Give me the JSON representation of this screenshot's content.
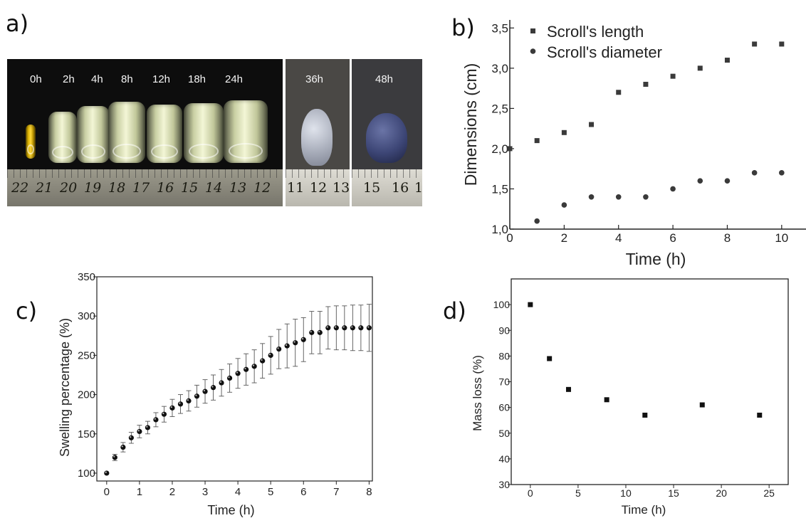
{
  "figure": {
    "panel_labels": [
      "a)",
      "b)",
      "c)",
      "d)"
    ],
    "photo_labels": [
      "0h",
      "2h",
      "4h",
      "8h",
      "12h",
      "18h",
      "24h",
      "36h",
      "48h"
    ],
    "ruler_main": [
      "22",
      "21",
      "20",
      "19",
      "18",
      "17",
      "16",
      "15",
      "14",
      "13",
      "12"
    ],
    "ruler_36h": [
      "11",
      "12",
      "13"
    ],
    "ruler_48h": [
      "15",
      "16",
      "1"
    ]
  },
  "chart_data": [
    {
      "type": "scatter",
      "xlabel": "Time (h)",
      "ylabel": "Dimensions (cm)",
      "xlim": [
        0,
        11
      ],
      "ylim": [
        1.0,
        3.6
      ],
      "xticks": [
        0,
        2,
        4,
        6,
        8,
        10
      ],
      "yticks": [
        "1,0",
        "1,5",
        "2,0",
        "2,5",
        "3,0",
        "3,5"
      ],
      "ytick_values": [
        1.0,
        1.5,
        2.0,
        2.5,
        3.0,
        3.5
      ],
      "legend": "top-left",
      "series": [
        {
          "name": "Scroll's length",
          "marker": "square",
          "color": "#3a3a3a",
          "x": [
            0,
            1,
            2,
            3,
            4,
            5,
            6,
            7,
            8,
            9,
            10
          ],
          "y": [
            2.0,
            2.1,
            2.2,
            2.3,
            2.7,
            2.8,
            2.9,
            3.0,
            3.1,
            3.3,
            3.3
          ]
        },
        {
          "name": "Scroll's diameter",
          "marker": "circle",
          "color": "#3a3a3a",
          "x": [
            1,
            2,
            3,
            4,
            5,
            6,
            7,
            8,
            9,
            10
          ],
          "y": [
            1.1,
            1.3,
            1.4,
            1.4,
            1.4,
            1.5,
            1.6,
            1.6,
            1.7,
            1.7
          ]
        }
      ]
    },
    {
      "type": "scatter",
      "xlabel": "Time (h)",
      "ylabel": "Swelling percentage (%)",
      "xlim": [
        -0.3,
        8.1
      ],
      "ylim": [
        90,
        350
      ],
      "xticks": [
        "0",
        "1",
        "2",
        "3",
        "4",
        "5",
        "6",
        "7",
        "8"
      ],
      "xtick_values": [
        0,
        1,
        2,
        3,
        4,
        5,
        6,
        7,
        8
      ],
      "yticks": [
        "100",
        "150",
        "200",
        "250",
        "300",
        "350"
      ],
      "ytick_values": [
        100,
        150,
        200,
        250,
        300,
        350
      ],
      "series": [
        {
          "marker": "sphere",
          "color": "#111111",
          "x": [
            0,
            0.25,
            0.5,
            0.75,
            1.0,
            1.25,
            1.5,
            1.75,
            2.0,
            2.25,
            2.5,
            2.75,
            3.0,
            3.25,
            3.5,
            3.75,
            4.0,
            4.25,
            4.5,
            4.75,
            5.0,
            5.25,
            5.5,
            5.75,
            6.0,
            6.25,
            6.5,
            6.75,
            7.0,
            7.25,
            7.5,
            7.75,
            8.0
          ],
          "y": [
            100,
            120,
            133,
            145,
            153,
            158,
            168,
            175,
            183,
            188,
            192,
            198,
            204,
            209,
            215,
            221,
            227,
            232,
            236,
            243,
            250,
            258,
            262,
            266,
            270,
            279,
            279,
            285,
            285,
            285,
            285,
            285,
            285
          ],
          "err": [
            0,
            4,
            6,
            7,
            8,
            8,
            9,
            10,
            11,
            12,
            13,
            14,
            15,
            16,
            17,
            18,
            19,
            20,
            21,
            22,
            24,
            25,
            28,
            30,
            28,
            27,
            27,
            27,
            28,
            28,
            29,
            29,
            30
          ]
        }
      ]
    },
    {
      "type": "scatter",
      "xlabel": "Time (h)",
      "ylabel": "Mass loss (%)",
      "xlim": [
        -2,
        27
      ],
      "ylim": [
        30,
        110
      ],
      "xticks": [
        "0",
        "5",
        "10",
        "15",
        "20",
        "25"
      ],
      "xtick_values": [
        0,
        5,
        10,
        15,
        20,
        25
      ],
      "yticks": [
        "30",
        "40",
        "50",
        "60",
        "70",
        "80",
        "90",
        "100"
      ],
      "ytick_values": [
        30,
        40,
        50,
        60,
        70,
        80,
        90,
        100
      ],
      "series": [
        {
          "marker": "square",
          "color": "#111111",
          "x": [
            0,
            2,
            4,
            8,
            12,
            18,
            24
          ],
          "y": [
            100,
            79,
            67,
            63,
            57,
            61,
            57
          ]
        }
      ]
    }
  ]
}
